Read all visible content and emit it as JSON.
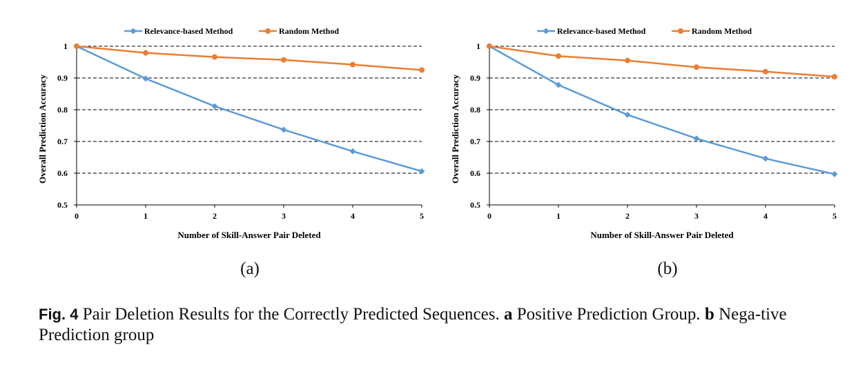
{
  "colors": {
    "relevance": "#5B9BD5",
    "random": "#ED7D31",
    "grid": "#000000"
  },
  "chart_data": [
    {
      "type": "line",
      "panel_label": "(a)",
      "x": [
        0,
        1,
        2,
        3,
        4,
        5
      ],
      "x_ticks": [
        "0",
        "1",
        "2",
        "3",
        "4",
        "5"
      ],
      "y_ticks": [
        "0.5",
        "0.6",
        "0.7",
        "0.8",
        "0.9",
        "1"
      ],
      "ylim": [
        0.5,
        1.0
      ],
      "xlabel": "Number of Skill-Answer Pair Deleted",
      "ylabel": "Overall Prediction Accuracy",
      "grid": "horizontal dashed",
      "legend": "top-center",
      "series": [
        {
          "name": "Relevance-based Method",
          "marker": "diamond",
          "values": [
            1.0,
            0.898,
            0.811,
            0.737,
            0.669,
            0.606
          ]
        },
        {
          "name": "Random Method",
          "marker": "circle",
          "values": [
            1.0,
            0.979,
            0.966,
            0.957,
            0.942,
            0.925
          ]
        }
      ]
    },
    {
      "type": "line",
      "panel_label": "(b)",
      "x": [
        0,
        1,
        2,
        3,
        4,
        5
      ],
      "x_ticks": [
        "0",
        "1",
        "2",
        "3",
        "4",
        "5"
      ],
      "y_ticks": [
        "0.5",
        "0.6",
        "0.7",
        "0.8",
        "0.9",
        "1"
      ],
      "ylim": [
        0.5,
        1.0
      ],
      "xlabel": "Number of Skill-Answer Pair Deleted",
      "ylabel": "Overall Prediction Accuracy",
      "grid": "horizontal dashed",
      "legend": "top-center",
      "series": [
        {
          "name": "Relevance-based Method",
          "marker": "diamond",
          "values": [
            1.0,
            0.878,
            0.784,
            0.709,
            0.646,
            0.597
          ]
        },
        {
          "name": "Random Method",
          "marker": "circle",
          "values": [
            1.0,
            0.969,
            0.955,
            0.934,
            0.92,
            0.904
          ]
        }
      ]
    }
  ],
  "caption": {
    "fig_label": "Fig. 4",
    "text_1": "Pair Deletion Results for the Correctly Predicted Sequences.",
    "label_a": "a",
    "text_2": "Positive Prediction Group.",
    "label_b": "b",
    "text_3": "Nega-tive Prediction group"
  }
}
